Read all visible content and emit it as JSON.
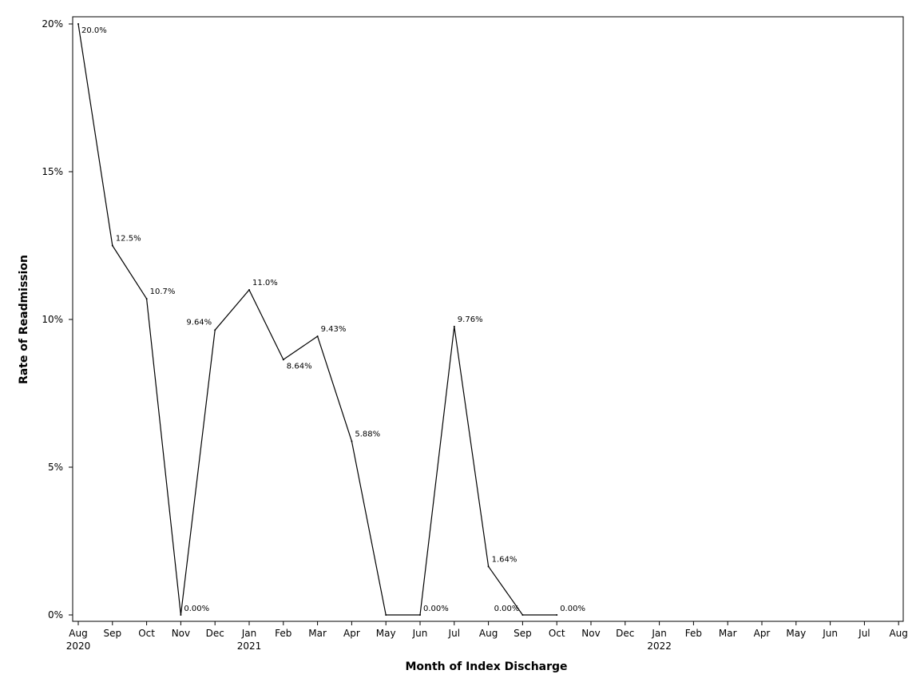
{
  "chart_data": {
    "type": "line",
    "title": "",
    "xlabel": "Month of Index Discharge",
    "ylabel": "Rate of Readmission",
    "ylim": [
      0,
      20
    ],
    "y_ticks": [
      {
        "value": 0,
        "label": "0%"
      },
      {
        "value": 5,
        "label": "5%"
      },
      {
        "value": 10,
        "label": "10%"
      },
      {
        "value": 15,
        "label": "15%"
      },
      {
        "value": 20,
        "label": "20%"
      }
    ],
    "x_ticks": [
      {
        "label": "Aug",
        "year": "2020"
      },
      {
        "label": "Sep",
        "year": ""
      },
      {
        "label": "Oct",
        "year": ""
      },
      {
        "label": "Nov",
        "year": ""
      },
      {
        "label": "Dec",
        "year": ""
      },
      {
        "label": "Jan",
        "year": "2021"
      },
      {
        "label": "Feb",
        "year": ""
      },
      {
        "label": "Mar",
        "year": ""
      },
      {
        "label": "Apr",
        "year": ""
      },
      {
        "label": "May",
        "year": ""
      },
      {
        "label": "Jun",
        "year": ""
      },
      {
        "label": "Jul",
        "year": ""
      },
      {
        "label": "Aug",
        "year": ""
      },
      {
        "label": "Sep",
        "year": ""
      },
      {
        "label": "Oct",
        "year": ""
      },
      {
        "label": "Nov",
        "year": ""
      },
      {
        "label": "Dec",
        "year": ""
      },
      {
        "label": "Jan",
        "year": "2022"
      },
      {
        "label": "Feb",
        "year": ""
      },
      {
        "label": "Mar",
        "year": ""
      },
      {
        "label": "Apr",
        "year": ""
      },
      {
        "label": "May",
        "year": ""
      },
      {
        "label": "Jun",
        "year": ""
      },
      {
        "label": "Jul",
        "year": ""
      },
      {
        "label": "Aug",
        "year": ""
      }
    ],
    "x": [
      "2020-08",
      "2020-09",
      "2020-10",
      "2020-11",
      "2020-12",
      "2021-01",
      "2021-02",
      "2021-03",
      "2021-04",
      "2021-05",
      "2021-06",
      "2021-07",
      "2021-08",
      "2021-09",
      "2021-10"
    ],
    "series": [
      {
        "values": [
          20.0,
          12.5,
          10.7,
          0.0,
          9.64,
          11.0,
          8.64,
          9.43,
          5.88,
          0.0,
          0.0,
          9.76,
          1.64,
          0.0,
          0.0
        ],
        "labels": [
          "20.0%",
          "12.5%",
          "10.7%",
          "0.00%",
          "9.64%",
          "11.0%",
          "8.64%",
          "9.43%",
          "5.88%",
          "",
          "0.00%",
          "9.76%",
          "1.64%",
          "0.00%",
          "0.00%"
        ]
      }
    ],
    "line_color": "#000000",
    "grid": false,
    "legend": "none"
  }
}
